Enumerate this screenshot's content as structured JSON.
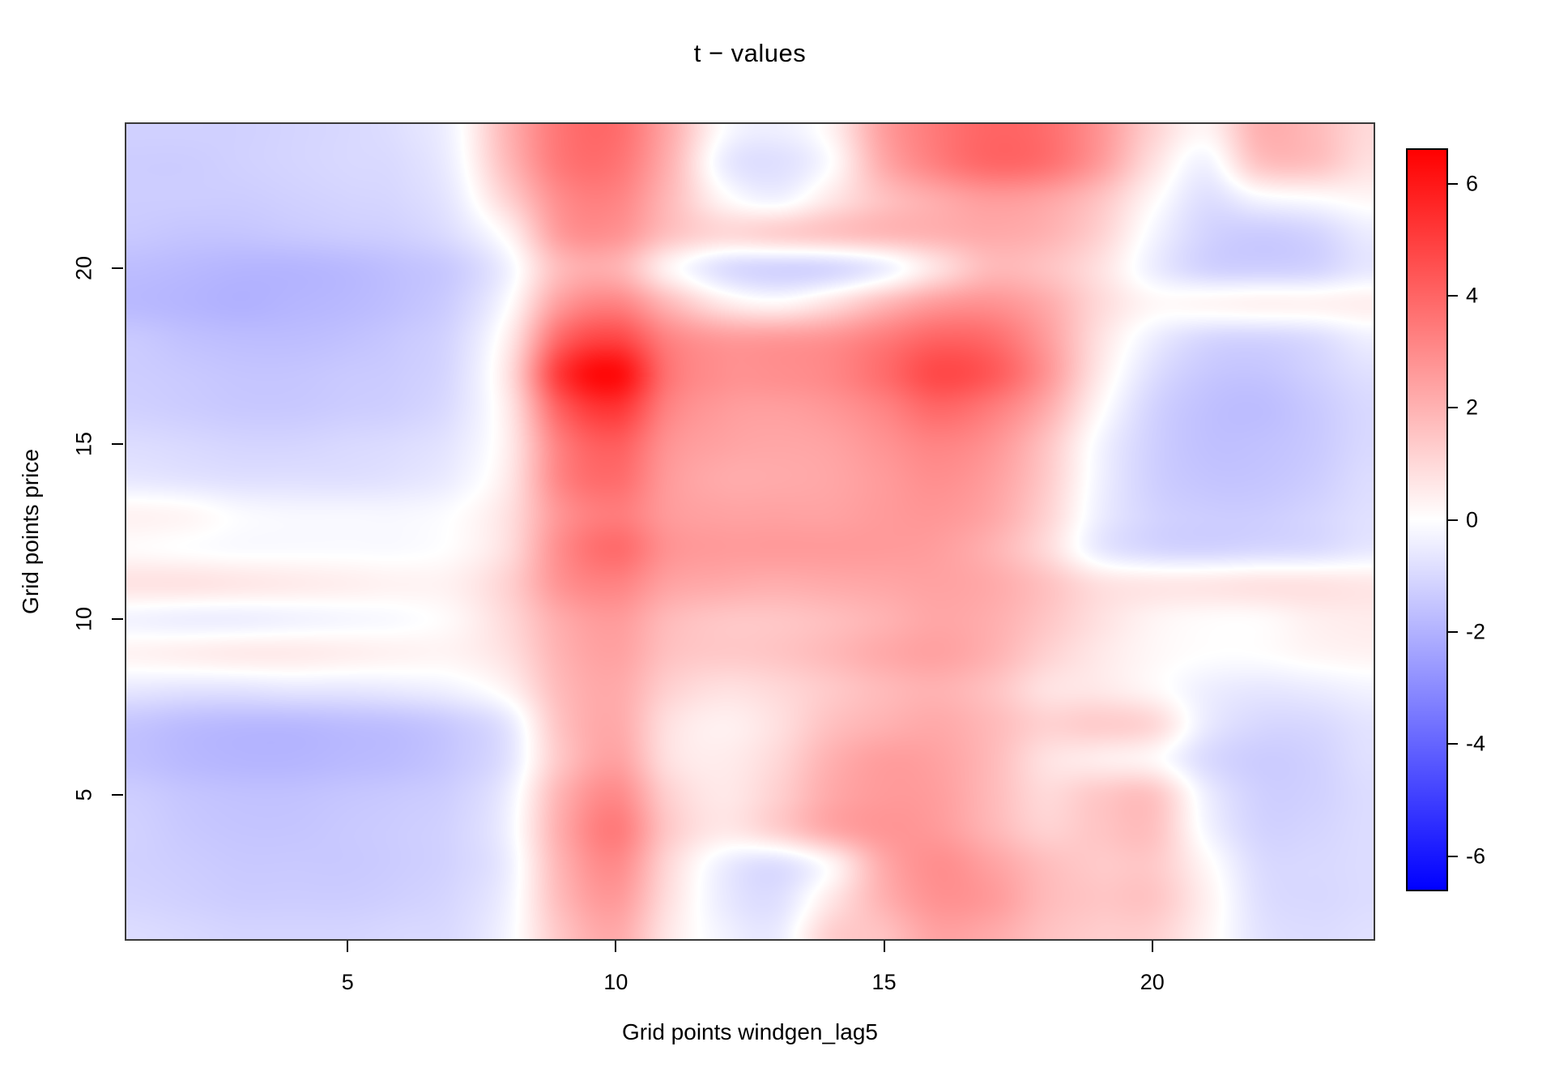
{
  "title": "t − values",
  "axes": {
    "x_label": "Grid points windgen_lag5",
    "y_label": "Grid points price",
    "x_ticks": [
      {
        "label": "5",
        "value": 5
      },
      {
        "label": "10",
        "value": 10
      },
      {
        "label": "15",
        "value": 15
      },
      {
        "label": "20",
        "value": 20
      }
    ],
    "y_ticks": [
      {
        "label": "5",
        "value": 5
      },
      {
        "label": "10",
        "value": 10
      },
      {
        "label": "15",
        "value": 15
      },
      {
        "label": "20",
        "value": 20
      }
    ]
  },
  "colorbar": {
    "zmin": -6.6,
    "zmax": 6.6,
    "color_low": "#0000FF",
    "color_mid": "#FFFFFF",
    "color_high": "#FF0000",
    "ticks": [
      {
        "label": "6",
        "value": 6
      },
      {
        "label": "4",
        "value": 4
      },
      {
        "label": "2",
        "value": 2
      },
      {
        "label": "0",
        "value": 0
      },
      {
        "label": "-2",
        "value": -2
      },
      {
        "label": "-4",
        "value": -4
      },
      {
        "label": "-6",
        "value": -6
      }
    ]
  },
  "chart_data": {
    "type": "heatmap",
    "title": "t − values",
    "xlabel": "Grid points windgen_lag5",
    "ylabel": "Grid points price",
    "x_grid_points": [
      1,
      2,
      3,
      4,
      5,
      6,
      7,
      8,
      9,
      10,
      11,
      12,
      13,
      14,
      15,
      16,
      17,
      18,
      19,
      20,
      21,
      22,
      23,
      24
    ],
    "y_grid_points": [
      1,
      2,
      3,
      4,
      5,
      6,
      7,
      8,
      9,
      10,
      11,
      12,
      13,
      14,
      15,
      16,
      17,
      18,
      19,
      20,
      21,
      22,
      23,
      24
    ],
    "x_display_range": [
      0.875,
      24.125
    ],
    "y_display_range": [
      0.875,
      24.125
    ],
    "z_range": [
      -6.6,
      6.6
    ],
    "legend_position": "right",
    "grid": "off",
    "rows_order": "top row first (y=24) down to y=1",
    "values": [
      [
        -1.2,
        -1.2,
        -1.2,
        -1.1,
        -1.0,
        -0.8,
        -0.2,
        2.0,
        3.6,
        3.8,
        2.2,
        0.0,
        -0.4,
        0.3,
        2.5,
        3.5,
        4.0,
        3.8,
        2.8,
        1.2,
        0.3,
        2.0,
        1.8,
        1.0
      ],
      [
        -1.3,
        -1.3,
        -1.2,
        -1.1,
        -1.0,
        -0.9,
        -0.3,
        1.8,
        3.5,
        3.6,
        2.0,
        -0.4,
        -0.8,
        0.0,
        2.2,
        3.3,
        3.9,
        3.7,
        2.6,
        0.8,
        -0.3,
        1.5,
        1.6,
        0.8
      ],
      [
        -1.3,
        -1.3,
        -1.3,
        -1.2,
        -1.1,
        -1.0,
        -0.5,
        1.2,
        3.0,
        3.2,
        1.8,
        0.2,
        -0.3,
        0.6,
        1.6,
        2.2,
        2.6,
        2.4,
        1.6,
        0.2,
        -0.8,
        -0.2,
        0.0,
        0.2
      ],
      [
        -1.4,
        -1.5,
        -1.5,
        -1.4,
        -1.3,
        -1.2,
        -0.8,
        0.3,
        2.6,
        2.8,
        1.6,
        1.0,
        1.2,
        1.5,
        1.8,
        2.0,
        2.2,
        2.0,
        1.2,
        -0.2,
        -1.1,
        -1.3,
        -1.1,
        -0.5
      ],
      [
        -1.7,
        -1.8,
        -1.9,
        -1.9,
        -1.8,
        -1.6,
        -1.3,
        -0.3,
        1.8,
        2.0,
        0.3,
        -0.8,
        -1.1,
        -1.0,
        -0.4,
        0.8,
        1.8,
        1.6,
        0.8,
        -0.4,
        -1.1,
        -1.2,
        -1.1,
        -0.6
      ],
      [
        -1.8,
        -1.9,
        -2.0,
        -1.9,
        -1.8,
        -1.6,
        -1.2,
        0.0,
        2.6,
        3.2,
        1.8,
        0.6,
        0.2,
        0.8,
        1.8,
        2.6,
        2.8,
        2.2,
        1.0,
        0.2,
        0.2,
        0.3,
        0.3,
        0.4
      ],
      [
        -1.4,
        -1.6,
        -1.7,
        -1.7,
        -1.6,
        -1.4,
        -1.0,
        0.5,
        4.0,
        4.8,
        3.2,
        2.6,
        2.6,
        2.8,
        3.4,
        4.0,
        3.8,
        2.6,
        0.8,
        -0.4,
        -1.0,
        -1.1,
        -0.9,
        -0.4
      ],
      [
        -1.3,
        -1.4,
        -1.5,
        -1.5,
        -1.4,
        -1.3,
        -0.9,
        0.8,
        5.2,
        6.3,
        3.6,
        2.9,
        2.9,
        3.1,
        3.8,
        4.7,
        4.3,
        2.8,
        0.6,
        -0.8,
        -1.4,
        -1.5,
        -1.2,
        -0.8
      ],
      [
        -1.2,
        -1.3,
        -1.4,
        -1.4,
        -1.3,
        -1.2,
        -0.8,
        0.6,
        4.2,
        5.2,
        3.2,
        2.6,
        2.5,
        2.7,
        3.2,
        3.9,
        3.4,
        2.2,
        0.2,
        -1.1,
        -1.6,
        -1.7,
        -1.4,
        -1.0
      ],
      [
        -0.9,
        -1.0,
        -1.1,
        -1.1,
        -1.0,
        -0.9,
        -0.6,
        0.5,
        3.4,
        4.2,
        2.8,
        2.4,
        2.3,
        2.4,
        2.8,
        3.2,
        2.8,
        1.6,
        -0.2,
        -1.2,
        -1.6,
        -1.6,
        -1.4,
        -1.0
      ],
      [
        -0.6,
        -0.7,
        -0.8,
        -0.8,
        -0.8,
        -0.7,
        -0.4,
        0.6,
        3.2,
        3.8,
        2.6,
        2.2,
        2.2,
        2.3,
        2.6,
        2.9,
        2.5,
        1.4,
        -0.3,
        -1.2,
        -1.5,
        -1.5,
        -1.3,
        -0.9
      ],
      [
        0.3,
        0.2,
        -0.1,
        -0.2,
        -0.2,
        -0.2,
        0.0,
        0.8,
        2.8,
        3.4,
        2.6,
        2.4,
        2.4,
        2.4,
        2.6,
        2.7,
        2.3,
        1.2,
        -0.4,
        -1.1,
        -1.3,
        -1.3,
        -1.1,
        -0.8
      ],
      [
        0.1,
        0.0,
        -0.1,
        -0.1,
        -0.1,
        -0.1,
        0.1,
        0.9,
        3.0,
        3.8,
        2.8,
        2.6,
        2.6,
        2.6,
        2.6,
        2.5,
        2.0,
        1.0,
        -0.5,
        -1.0,
        -1.1,
        -1.0,
        -0.9,
        -0.6
      ],
      [
        0.7,
        0.7,
        0.6,
        0.5,
        0.4,
        0.3,
        0.4,
        1.2,
        2.8,
        3.2,
        2.4,
        2.2,
        2.1,
        2.2,
        2.3,
        2.4,
        2.2,
        1.6,
        0.8,
        0.6,
        0.6,
        0.7,
        0.7,
        0.6
      ],
      [
        -0.3,
        -0.4,
        -0.4,
        -0.3,
        -0.2,
        -0.1,
        0.2,
        1.0,
        2.2,
        2.6,
        1.8,
        1.5,
        1.5,
        1.7,
        2.0,
        2.3,
        2.1,
        1.5,
        0.8,
        0.3,
        0.1,
        0.1,
        0.4,
        0.5
      ],
      [
        0.3,
        0.4,
        0.5,
        0.5,
        0.4,
        0.3,
        0.3,
        0.8,
        2.0,
        2.4,
        1.6,
        1.4,
        1.5,
        1.8,
        2.2,
        2.4,
        2.0,
        1.2,
        0.6,
        0.2,
        0.0,
        0.0,
        0.2,
        0.3
      ],
      [
        -0.6,
        -0.7,
        -0.7,
        -0.6,
        -0.6,
        -0.5,
        -0.3,
        0.3,
        1.8,
        2.2,
        1.2,
        0.8,
        1.0,
        1.4,
        1.8,
        2.0,
        1.6,
        0.8,
        0.6,
        0.2,
        -0.4,
        -0.6,
        -0.5,
        -0.3
      ],
      [
        -1.5,
        -1.7,
        -1.8,
        -1.8,
        -1.7,
        -1.6,
        -1.3,
        -0.6,
        1.6,
        2.2,
        0.8,
        0.4,
        0.8,
        1.6,
        2.0,
        2.2,
        1.8,
        1.2,
        1.3,
        1.0,
        -0.5,
        -1.0,
        -1.0,
        -0.7
      ],
      [
        -1.6,
        -1.8,
        -1.9,
        -1.9,
        -1.8,
        -1.7,
        -1.4,
        -0.7,
        1.5,
        2.4,
        0.8,
        0.5,
        1.0,
        2.0,
        2.5,
        2.4,
        1.8,
        0.8,
        0.5,
        0.2,
        -0.9,
        -1.3,
        -1.2,
        -0.8
      ],
      [
        -1.3,
        -1.5,
        -1.6,
        -1.6,
        -1.5,
        -1.4,
        -1.2,
        -0.4,
        2.0,
        3.0,
        1.2,
        0.6,
        1.2,
        2.2,
        2.6,
        2.5,
        1.8,
        1.0,
        1.4,
        1.5,
        -0.4,
        -1.2,
        -1.2,
        -0.9
      ],
      [
        -1.2,
        -1.4,
        -1.5,
        -1.5,
        -1.4,
        -1.3,
        -1.1,
        -0.3,
        2.2,
        3.4,
        1.4,
        0.6,
        1.2,
        2.2,
        2.7,
        2.6,
        1.9,
        1.2,
        1.5,
        1.6,
        -0.2,
        -1.1,
        -1.1,
        -0.9
      ],
      [
        -1.2,
        -1.3,
        -1.4,
        -1.4,
        -1.4,
        -1.3,
        -1.1,
        -0.4,
        2.0,
        3.0,
        1.0,
        -0.4,
        -0.8,
        0.2,
        2.2,
        2.9,
        2.4,
        1.7,
        1.4,
        1.4,
        0.2,
        -0.9,
        -1.0,
        -0.9
      ],
      [
        -1.1,
        -1.2,
        -1.3,
        -1.3,
        -1.3,
        -1.2,
        -1.0,
        -0.3,
        1.8,
        2.6,
        0.8,
        -0.5,
        -0.8,
        0.6,
        2.0,
        2.8,
        2.6,
        1.8,
        1.5,
        1.5,
        0.4,
        -0.8,
        -1.0,
        -0.9
      ],
      [
        -0.9,
        -1.0,
        -1.1,
        -1.1,
        -1.1,
        -1.0,
        -0.9,
        -0.2,
        1.5,
        2.2,
        0.6,
        -0.3,
        -0.5,
        1.2,
        1.6,
        2.4,
        2.2,
        1.6,
        1.3,
        1.2,
        0.3,
        -0.7,
        -0.9,
        -0.8
      ]
    ]
  }
}
